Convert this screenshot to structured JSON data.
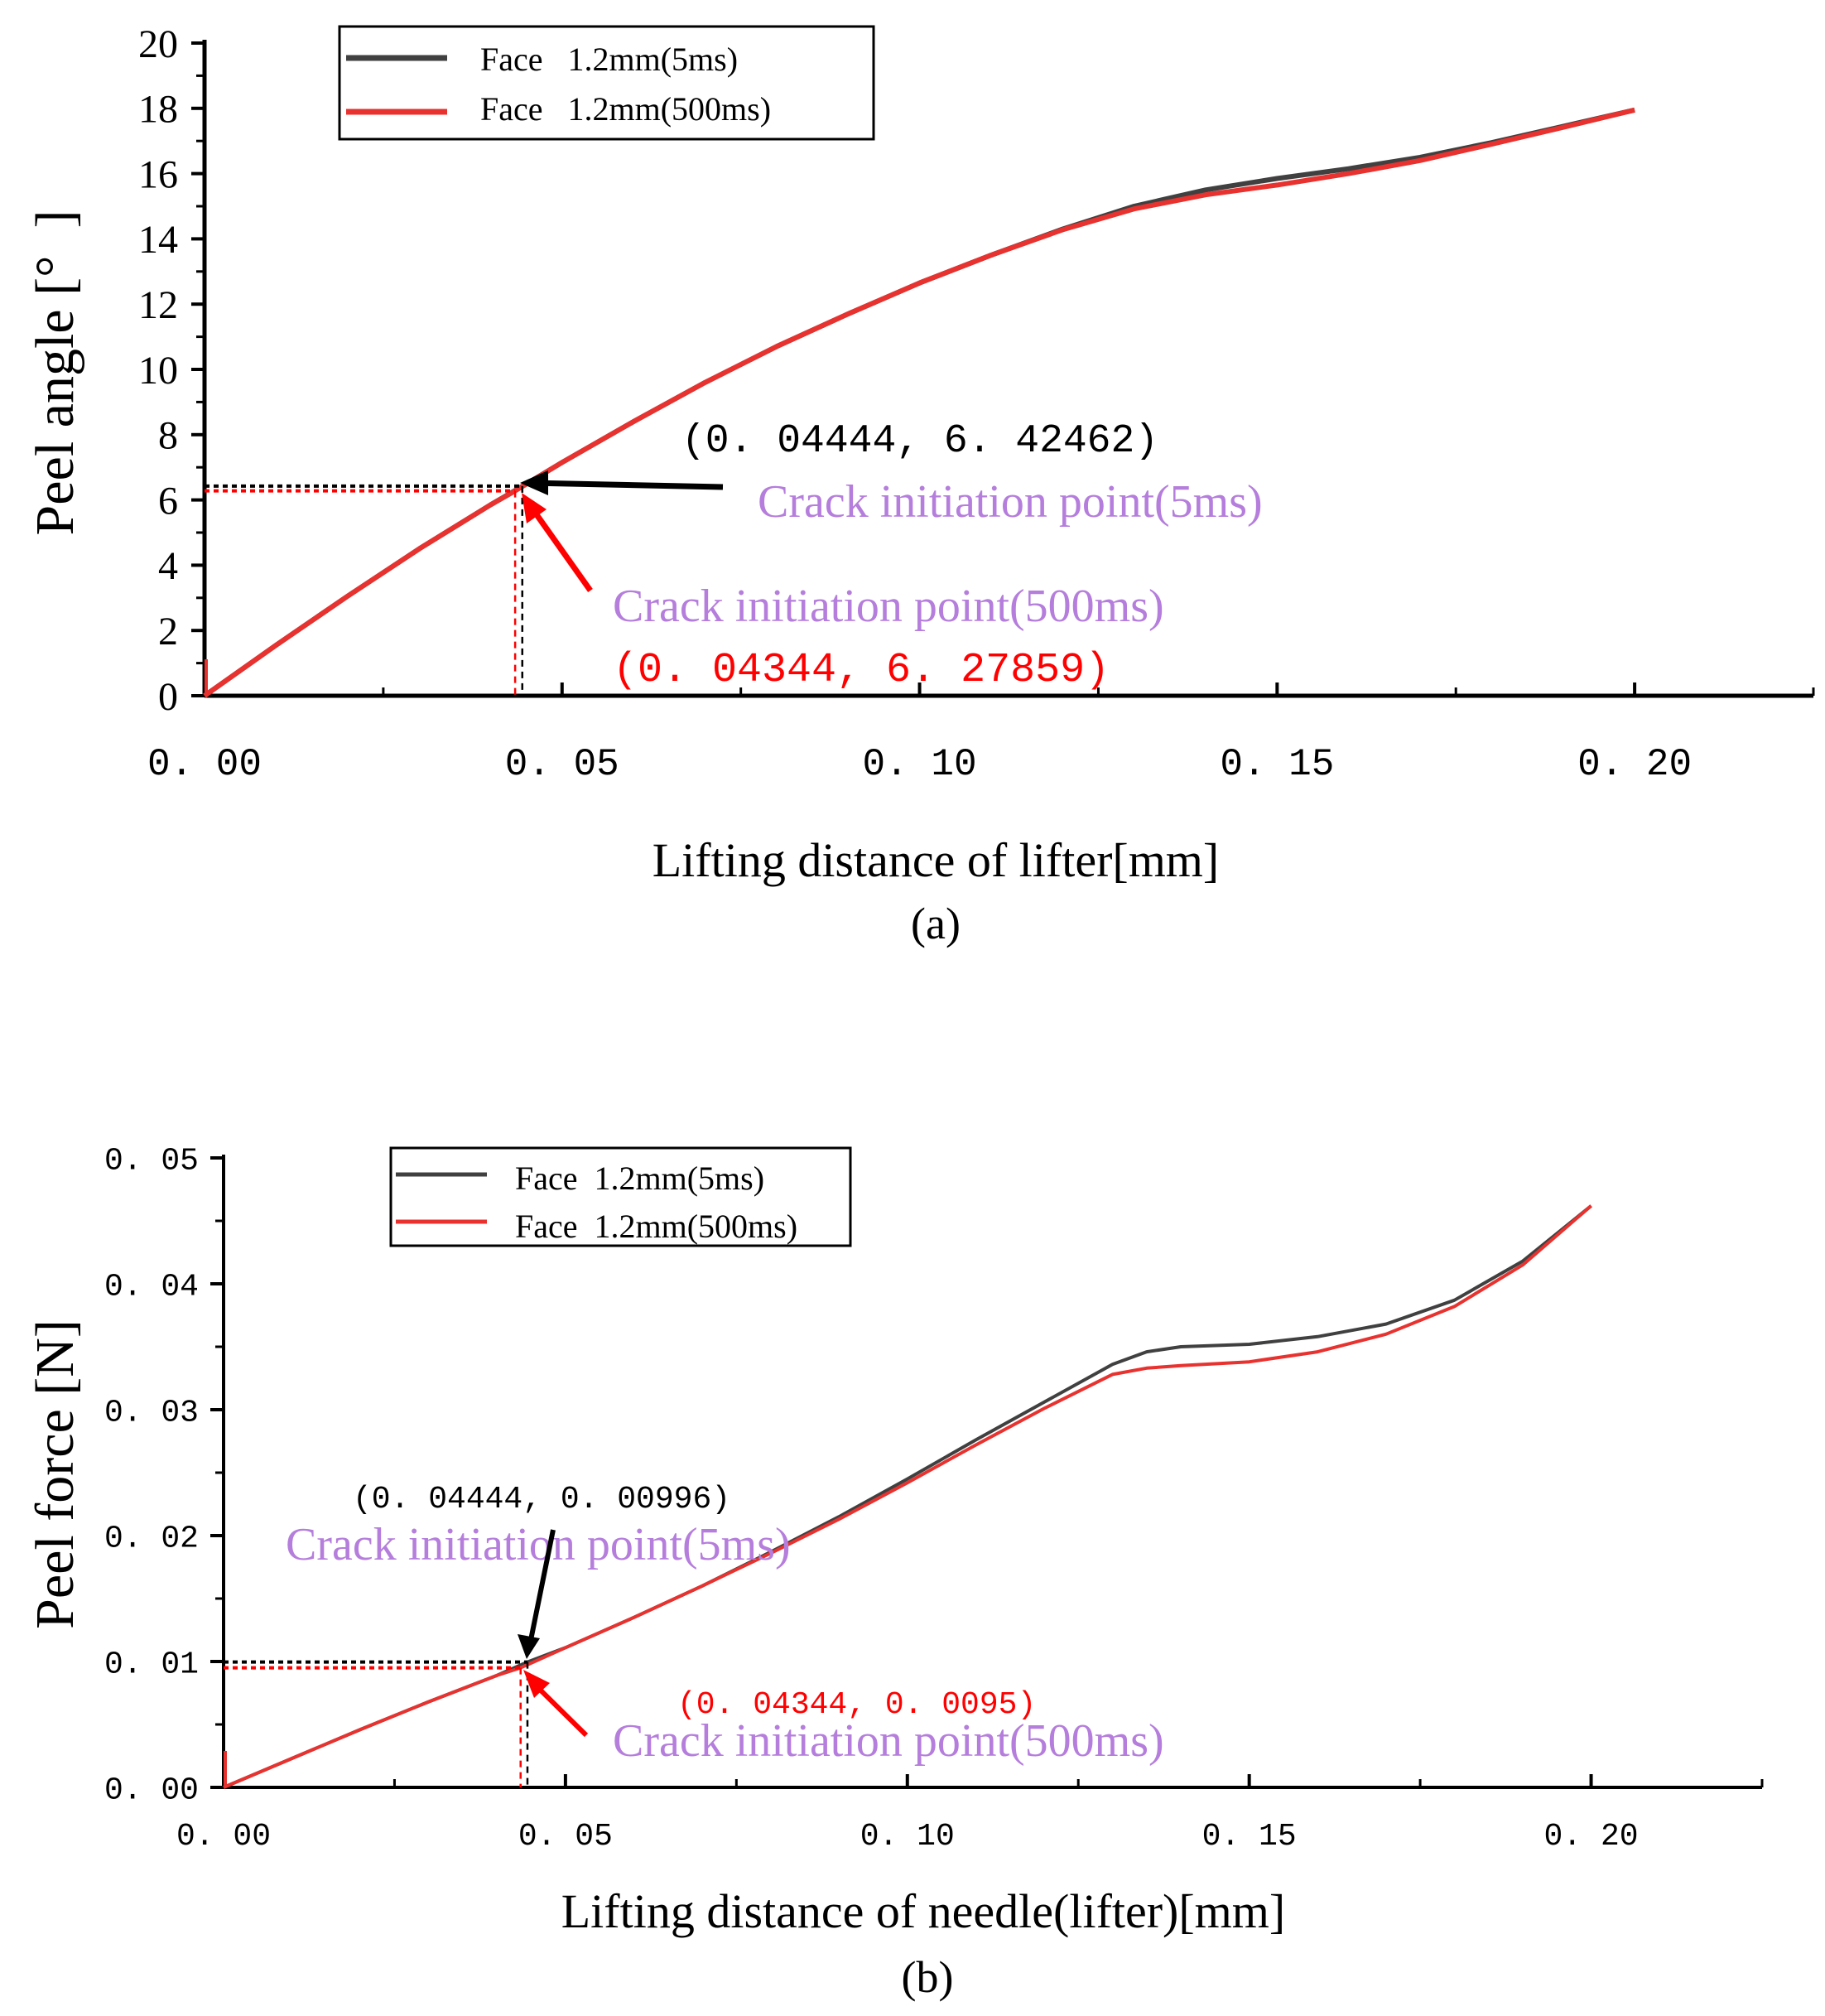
{
  "chart_data": [
    {
      "type": "line",
      "panel_label": "(a)",
      "xlabel": "Lifting distance of lifter[mm]",
      "ylabel": "Peel angle [°  ]",
      "xlim": [
        0,
        0.225
      ],
      "ylim": [
        0,
        20
      ],
      "x_ticks": [
        0,
        0.05,
        0.1,
        0.15,
        0.2
      ],
      "x_tick_labels": [
        "0. 00",
        "0. 05",
        "0. 10",
        "0. 15",
        "0. 20"
      ],
      "y_ticks": [
        0,
        2,
        4,
        6,
        8,
        10,
        12,
        14,
        16,
        18,
        20
      ],
      "y_tick_labels": [
        "0",
        "2",
        "4",
        "6",
        "8",
        "10",
        "12",
        "14",
        "16",
        "18",
        "20"
      ],
      "legend": {
        "position": "top-left",
        "entries": [
          {
            "label": "Face   1.2mm(5ms)",
            "color": "#404040"
          },
          {
            "label": "Face   1.2mm(500ms)",
            "color": "#e8322f"
          }
        ]
      },
      "series": [
        {
          "name": "Face 1.2mm(5ms)",
          "color": "#404040",
          "x": [
            0,
            0.01,
            0.02,
            0.03,
            0.04,
            0.04444,
            0.05,
            0.06,
            0.07,
            0.08,
            0.09,
            0.1,
            0.11,
            0.12,
            0.13,
            0.14,
            0.15,
            0.16,
            0.17,
            0.18,
            0.19,
            0.2
          ],
          "y": [
            0,
            1.55,
            3.05,
            4.5,
            5.85,
            6.42,
            7.15,
            8.4,
            9.6,
            10.7,
            11.7,
            12.65,
            13.5,
            14.3,
            15.0,
            15.5,
            15.85,
            16.15,
            16.5,
            16.95,
            17.45,
            17.95
          ]
        },
        {
          "name": "Face 1.2mm(500ms)",
          "color": "#e8322f",
          "x": [
            0,
            0.01,
            0.02,
            0.03,
            0.04,
            0.04344,
            0.05,
            0.06,
            0.07,
            0.08,
            0.09,
            0.1,
            0.11,
            0.12,
            0.13,
            0.14,
            0.15,
            0.16,
            0.17,
            0.18,
            0.19,
            0.2
          ],
          "y": [
            0,
            1.55,
            3.05,
            4.5,
            5.85,
            6.28,
            7.15,
            8.4,
            9.6,
            10.7,
            11.7,
            12.65,
            13.5,
            14.28,
            14.92,
            15.35,
            15.65,
            16.0,
            16.4,
            16.9,
            17.42,
            17.95
          ]
        }
      ],
      "markers": [
        {
          "name": "crack-5ms",
          "x": 0.04444,
          "y": 6.42462,
          "color": "#000000"
        },
        {
          "name": "crack-500ms",
          "x": 0.04344,
          "y": 6.27859,
          "color": "#ff0000"
        }
      ],
      "annotations": [
        {
          "text": "(0. 04444, 6. 42462)",
          "color": "#000000"
        },
        {
          "text": "Crack initiation point(5ms)",
          "color": "#b57edc"
        },
        {
          "text": "Crack initiation point(500ms)",
          "color": "#b57edc"
        },
        {
          "text": "(0. 04344, 6. 27859)",
          "color": "#ff0000"
        }
      ]
    },
    {
      "type": "line",
      "panel_label": "(b)",
      "xlabel": "Lifting distance of needle(lifter)[mm]",
      "ylabel": "Peel force [N]",
      "xlim": [
        0,
        0.225
      ],
      "ylim": [
        0,
        0.05
      ],
      "x_ticks": [
        0,
        0.05,
        0.1,
        0.15,
        0.2
      ],
      "x_tick_labels": [
        "0. 00",
        "0. 05",
        "0. 10",
        "0. 15",
        "0. 20"
      ],
      "y_ticks": [
        0,
        0.01,
        0.02,
        0.03,
        0.04,
        0.05
      ],
      "y_tick_labels": [
        "0. 00",
        "0. 01",
        "0. 02",
        "0. 03",
        "0. 04",
        "0. 05"
      ],
      "legend": {
        "position": "top-left",
        "entries": [
          {
            "label": "Face  1.2mm(5ms)",
            "color": "#404040"
          },
          {
            "label": "Face  1.2mm(500ms)",
            "color": "#e8322f"
          }
        ]
      },
      "series": [
        {
          "name": "Face 1.2mm(5ms)",
          "color": "#404040",
          "x": [
            0,
            0.01,
            0.02,
            0.03,
            0.04,
            0.04444,
            0.05,
            0.06,
            0.07,
            0.08,
            0.09,
            0.1,
            0.11,
            0.12,
            0.13,
            0.135,
            0.14,
            0.15,
            0.16,
            0.17,
            0.18,
            0.19,
            0.2
          ],
          "y": [
            0,
            0.0023,
            0.0046,
            0.0068,
            0.0089,
            0.00996,
            0.0111,
            0.0135,
            0.016,
            0.0187,
            0.0215,
            0.0245,
            0.0276,
            0.0306,
            0.0336,
            0.0346,
            0.035,
            0.0352,
            0.0358,
            0.0368,
            0.0387,
            0.0418,
            0.0462
          ]
        },
        {
          "name": "Face 1.2mm(500ms)",
          "color": "#e8322f",
          "x": [
            0,
            0.01,
            0.02,
            0.03,
            0.04,
            0.04344,
            0.05,
            0.06,
            0.07,
            0.08,
            0.09,
            0.1,
            0.11,
            0.12,
            0.13,
            0.135,
            0.14,
            0.15,
            0.16,
            0.17,
            0.18,
            0.19,
            0.2
          ],
          "y": [
            0,
            0.0023,
            0.0046,
            0.0068,
            0.0089,
            0.0095,
            0.0111,
            0.0135,
            0.016,
            0.0186,
            0.0213,
            0.0242,
            0.0272,
            0.0301,
            0.0328,
            0.0333,
            0.0335,
            0.0338,
            0.0346,
            0.036,
            0.0382,
            0.0415,
            0.0462
          ]
        }
      ],
      "markers": [
        {
          "name": "crack-5ms",
          "x": 0.04444,
          "y": 0.00996,
          "color": "#000000"
        },
        {
          "name": "crack-500ms",
          "x": 0.04344,
          "y": 0.0095,
          "color": "#ff0000"
        }
      ],
      "annotations": [
        {
          "text": "(0. 04444, 0. 00996)",
          "color": "#000000"
        },
        {
          "text": "Crack initiation point(5ms)",
          "color": "#b57edc"
        },
        {
          "text": "(0. 04344, 0. 0095)",
          "color": "#ff0000"
        },
        {
          "text": "Crack initiation point(500ms)",
          "color": "#b57edc"
        }
      ]
    }
  ]
}
